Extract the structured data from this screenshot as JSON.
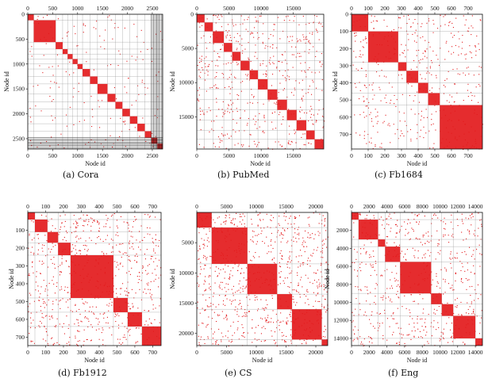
{
  "figure": {
    "accent_color": "#e31a1c",
    "panels": [
      {
        "caption": "(a) Cora"
      },
      {
        "caption": "(b) PubMed"
      },
      {
        "caption": "(c) Fb1684"
      },
      {
        "caption": "(d) Fb1912"
      },
      {
        "caption": "(e) CS"
      },
      {
        "caption": "(f) Eng"
      }
    ]
  },
  "chart_data": [
    {
      "type": "heatmap",
      "title": "Cora",
      "xlabel": "Node id",
      "ylabel": "Node id",
      "x_range": [
        0,
        2708
      ],
      "y_range": [
        0,
        2708
      ],
      "x_ticks": [
        0,
        500,
        1000,
        1500,
        2000,
        2500
      ],
      "y_ticks": [
        0,
        500,
        1000,
        1500,
        2000,
        2500
      ],
      "tick_labels_top": true,
      "tick_labels_bottom": true,
      "blocks": [
        [
          0,
          120
        ],
        [
          120,
          560
        ],
        [
          560,
          700
        ],
        [
          700,
          800
        ],
        [
          800,
          900
        ],
        [
          900,
          1000
        ],
        [
          1000,
          1100
        ],
        [
          1100,
          1250
        ],
        [
          1250,
          1400
        ],
        [
          1400,
          1600
        ],
        [
          1600,
          1760
        ],
        [
          1760,
          1900
        ],
        [
          1900,
          2050
        ],
        [
          2050,
          2200
        ],
        [
          2200,
          2350
        ],
        [
          2350,
          2480
        ],
        [
          2480,
          2600
        ],
        [
          2600,
          2708
        ]
      ],
      "dense_band": [
        2480,
        2708
      ],
      "density": 0.12
    },
    {
      "type": "heatmap",
      "title": "PubMed",
      "xlabel": "Node id",
      "ylabel": "Node id",
      "x_range": [
        0,
        19717
      ],
      "y_range": [
        0,
        19717
      ],
      "x_ticks": [
        0,
        5000,
        10000,
        15000
      ],
      "y_ticks": [
        0,
        5000,
        10000,
        15000
      ],
      "tick_labels_top": true,
      "tick_labels_bottom": true,
      "blocks": [
        [
          0,
          1200
        ],
        [
          1200,
          2500
        ],
        [
          2500,
          4200
        ],
        [
          4200,
          5500
        ],
        [
          5500,
          6800
        ],
        [
          6800,
          8200
        ],
        [
          8200,
          9500
        ],
        [
          9500,
          11000
        ],
        [
          11000,
          12500
        ],
        [
          12500,
          14000
        ],
        [
          14000,
          15500
        ],
        [
          15500,
          17000
        ],
        [
          17000,
          18300
        ],
        [
          18300,
          19717
        ]
      ],
      "density": 0.35
    },
    {
      "type": "heatmap",
      "title": "Fb1684",
      "xlabel": "Node id",
      "ylabel": "Node id",
      "x_range": [
        0,
        786
      ],
      "y_range": [
        0,
        786
      ],
      "x_ticks": [
        0,
        100,
        200,
        300,
        400,
        500,
        600,
        700
      ],
      "y_ticks": [
        0,
        100,
        200,
        300,
        400,
        500,
        600,
        700
      ],
      "tick_labels_top": true,
      "tick_labels_bottom": true,
      "blocks": [
        [
          0,
          100
        ],
        [
          100,
          280
        ],
        [
          280,
          330
        ],
        [
          330,
          400
        ],
        [
          400,
          460
        ],
        [
          460,
          530
        ],
        [
          530,
          786
        ]
      ],
      "density": 0.3
    },
    {
      "type": "heatmap",
      "title": "Fb1912",
      "xlabel": "Node id",
      "ylabel": "Node id",
      "x_range": [
        0,
        747
      ],
      "y_range": [
        0,
        747
      ],
      "x_ticks": [
        0,
        100,
        200,
        300,
        400,
        500,
        600,
        700
      ],
      "y_ticks": [
        100,
        200,
        300,
        400,
        500,
        600,
        700
      ],
      "tick_labels_top": true,
      "tick_labels_bottom": true,
      "blocks": [
        [
          0,
          40
        ],
        [
          40,
          110
        ],
        [
          110,
          170
        ],
        [
          170,
          240
        ],
        [
          240,
          480
        ],
        [
          480,
          560
        ],
        [
          560,
          640
        ],
        [
          640,
          747
        ]
      ],
      "density": 0.45
    },
    {
      "type": "heatmap",
      "title": "CS",
      "xlabel": "Node id",
      "ylabel": "Node id",
      "x_range": [
        0,
        22000
      ],
      "y_range": [
        0,
        22000
      ],
      "x_ticks": [
        0,
        5000,
        10000,
        15000,
        20000
      ],
      "y_ticks": [
        5000,
        10000,
        15000,
        20000
      ],
      "tick_labels_top": true,
      "tick_labels_bottom": true,
      "blocks": [
        [
          0,
          2500
        ],
        [
          2500,
          8500
        ],
        [
          8500,
          13500
        ],
        [
          13500,
          16000
        ],
        [
          16000,
          21000
        ],
        [
          21000,
          22000
        ]
      ],
      "density": 0.55
    },
    {
      "type": "heatmap",
      "title": "Eng",
      "xlabel": "Node id",
      "ylabel": "Node id",
      "x_range": [
        0,
        14800
      ],
      "y_range": [
        0,
        14800
      ],
      "x_ticks": [
        0,
        2000,
        4000,
        6000,
        8000,
        10000,
        12000,
        14000
      ],
      "y_ticks": [
        2000,
        4000,
        6000,
        8000,
        10000,
        12000,
        14000
      ],
      "tick_labels_top": true,
      "tick_labels_bottom": true,
      "blocks": [
        [
          0,
          800
        ],
        [
          800,
          3000
        ],
        [
          3000,
          3800
        ],
        [
          3800,
          5500
        ],
        [
          5500,
          9000
        ],
        [
          9000,
          10200
        ],
        [
          10200,
          11500
        ],
        [
          11500,
          14000
        ],
        [
          14000,
          14800
        ]
      ],
      "density": 0.4
    }
  ]
}
